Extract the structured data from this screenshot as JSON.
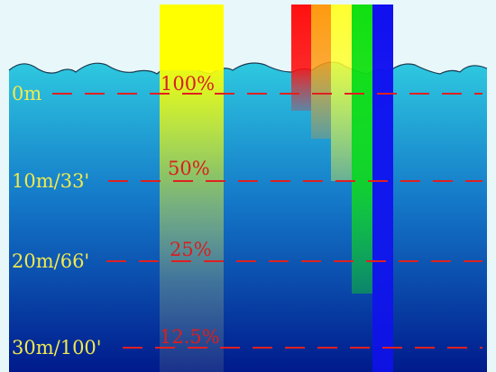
{
  "depth_markers": [
    {
      "label": "0m",
      "intensity_label": "100%"
    },
    {
      "label": "10m/33'",
      "intensity_label": "50%"
    },
    {
      "label": "20m/66'",
      "intensity_label": "25%"
    },
    {
      "label": "30m/100'",
      "intensity_label": "12.5%"
    }
  ],
  "light_beam": {
    "color": "#ffff00",
    "intensities_percent": [
      100,
      50,
      25,
      12.5
    ]
  },
  "color_bands": [
    {
      "name": "red",
      "color": "#ff1010"
    },
    {
      "name": "orange",
      "color": "#ff9a10"
    },
    {
      "name": "yellow",
      "color": "#ffff30"
    },
    {
      "name": "green",
      "color": "#10e010"
    },
    {
      "name": "blue",
      "color": "#1010f0"
    }
  ],
  "colors": {
    "sky": "#e8f8fa",
    "water_top": "#2ec9e0",
    "water_bottom": "#001a8c",
    "marker_line": "#e02020",
    "depth_text": "#f2e94e"
  }
}
